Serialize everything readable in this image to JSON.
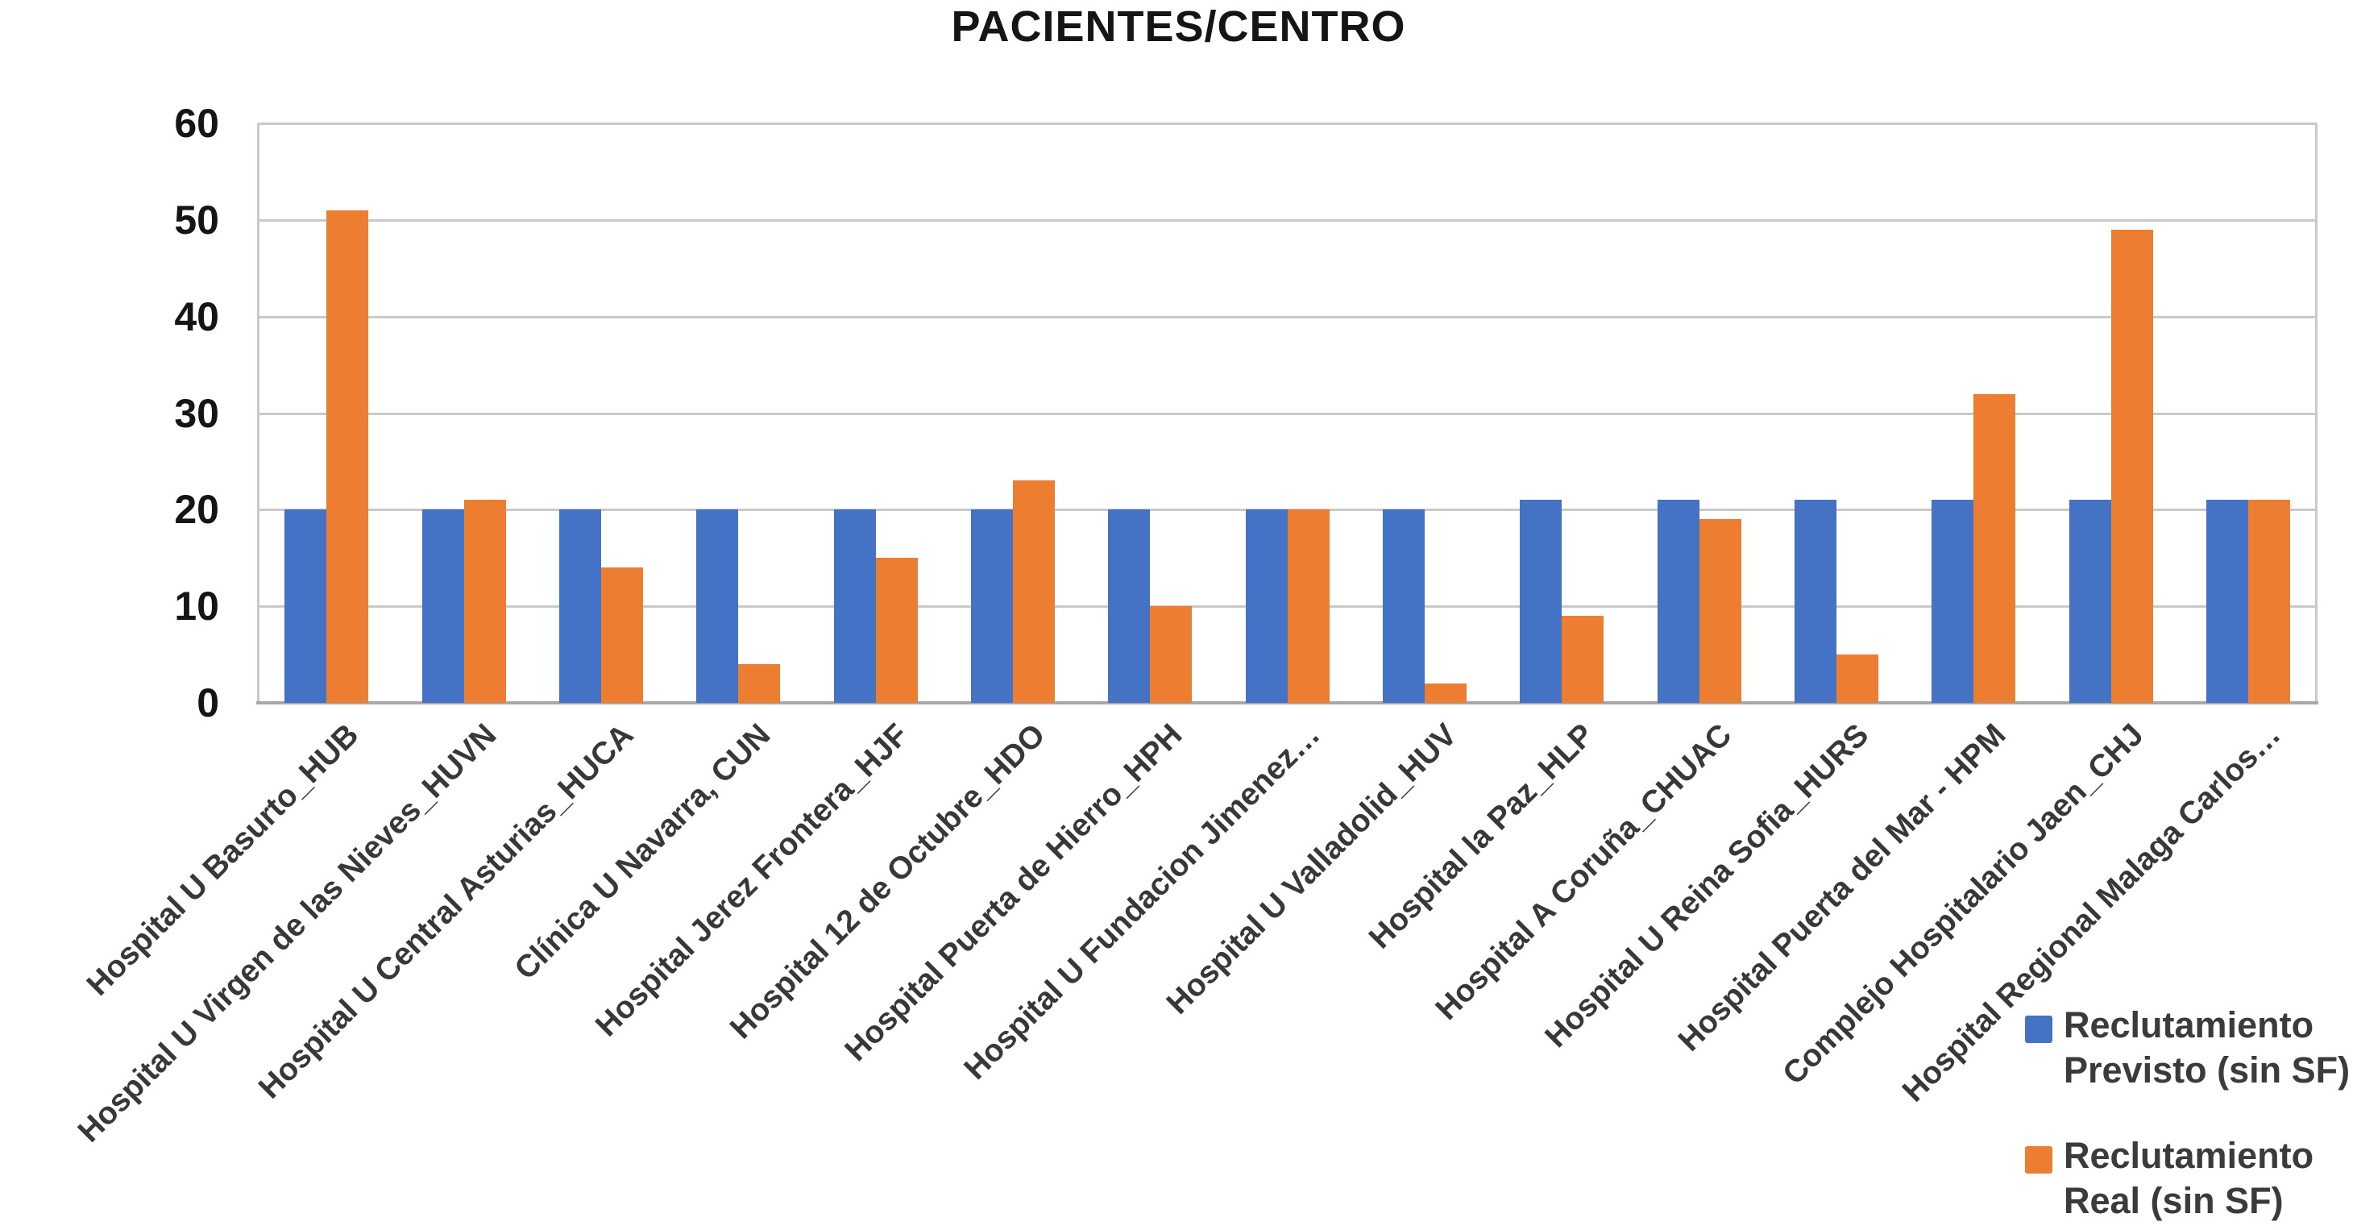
{
  "title": "PACIENTES/CENTRO",
  "colors": {
    "previsto": "#4472C4",
    "real": "#ED7D31",
    "gridline": "#C9C9C9",
    "axis_line": "#A8A8A8",
    "title_text": "#151515",
    "label_text": "#383838"
  },
  "chart_data": {
    "type": "bar",
    "title": "PACIENTES/CENTRO",
    "xlabel": "",
    "ylabel": "",
    "ylim": [
      0,
      60
    ],
    "yticks": [
      0,
      10,
      20,
      30,
      40,
      50,
      60
    ],
    "grid": "horizontal",
    "legend_position": "bottom-right",
    "categories": [
      "Hospital U Basurto_HUB",
      "Hospital U Virgen de las Nieves_HUVN",
      "Hospital U Central Asturias_HUCA",
      "Clínica U Navarra, CUN",
      "Hospital Jerez Frontera_HJF",
      "Hospital 12 de Octubre_HDO",
      "Hospital Puerta de Hierro_HPH",
      "Hospital U Fundacion Jimenez…",
      "Hospital U Valladolid_HUV",
      "Hospital la Paz_HLP",
      "Hospital A Coruña_CHUAC",
      "Hospital U Reina Sofia_HURS",
      "Hospital Puerta del Mar - HPM",
      "Complejo Hospitalario Jaen_CHJ",
      "Hospital Regional Malaga Carlos…"
    ],
    "series": [
      {
        "name": "Reclutamiento Previsto (sin SF)",
        "legend_lines": [
          "Reclutamiento",
          "Previsto (sin SF)"
        ],
        "color": "#4472C4",
        "values": [
          20,
          20,
          20,
          20,
          20,
          20,
          20,
          20,
          20,
          21,
          21,
          21,
          21,
          21,
          21
        ]
      },
      {
        "name": "Reclutamiento Real (sin SF)",
        "legend_lines": [
          "Reclutamiento",
          "Real (sin SF)"
        ],
        "color": "#ED7D31",
        "values": [
          51,
          21,
          14,
          4,
          15,
          23,
          10,
          20,
          2,
          9,
          19,
          5,
          32,
          49,
          21
        ]
      }
    ]
  }
}
